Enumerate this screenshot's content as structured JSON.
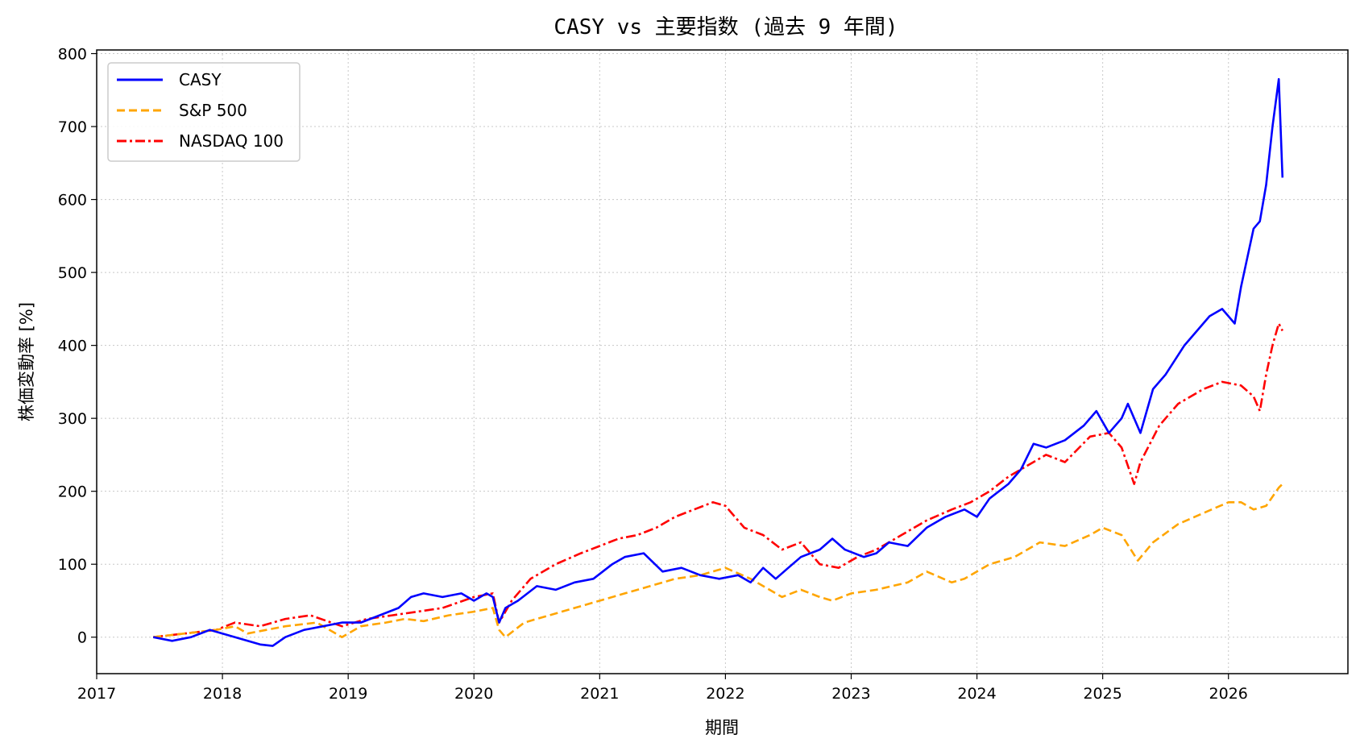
{
  "chart_data": {
    "type": "line",
    "title": "CASY vs 主要指数 (過去 9 年間)",
    "xlabel": "期間",
    "ylabel": "株価変動率 [%]",
    "xlim": [
      2017.0,
      2026.95
    ],
    "ylim": [
      -50,
      805
    ],
    "xticks": [
      2017,
      2018,
      2019,
      2020,
      2021,
      2022,
      2023,
      2024,
      2025,
      2026
    ],
    "yticks": [
      0,
      100,
      200,
      300,
      400,
      500,
      600,
      700,
      800
    ],
    "grid": true,
    "legend_position": "top-left",
    "series": [
      {
        "name": "CASY",
        "color": "#0000ff",
        "style": "solid",
        "x": [
          2017.45,
          2017.6,
          2017.75,
          2017.9,
          2018.0,
          2018.1,
          2018.2,
          2018.3,
          2018.4,
          2018.5,
          2018.65,
          2018.8,
          2018.95,
          2019.1,
          2019.25,
          2019.4,
          2019.5,
          2019.6,
          2019.75,
          2019.9,
          2020.0,
          2020.1,
          2020.15,
          2020.2,
          2020.25,
          2020.35,
          2020.5,
          2020.65,
          2020.8,
          2020.95,
          2021.1,
          2021.2,
          2021.35,
          2021.5,
          2021.65,
          2021.8,
          2021.95,
          2022.1,
          2022.2,
          2022.3,
          2022.4,
          2022.5,
          2022.6,
          2022.75,
          2022.85,
          2022.95,
          2023.1,
          2023.2,
          2023.3,
          2023.45,
          2023.6,
          2023.75,
          2023.9,
          2024.0,
          2024.1,
          2024.25,
          2024.35,
          2024.45,
          2024.55,
          2024.7,
          2024.85,
          2024.95,
          2025.05,
          2025.15,
          2025.2,
          2025.3,
          2025.4,
          2025.5,
          2025.65,
          2025.75,
          2025.85,
          2025.95,
          2026.05,
          2026.1,
          2026.15,
          2026.2,
          2026.25,
          2026.3,
          2026.35,
          2026.4,
          2026.43
        ],
        "y": [
          0,
          -5,
          0,
          10,
          5,
          0,
          -5,
          -10,
          -12,
          0,
          10,
          15,
          20,
          20,
          30,
          40,
          55,
          60,
          55,
          60,
          50,
          60,
          55,
          20,
          40,
          50,
          70,
          65,
          75,
          80,
          100,
          110,
          115,
          90,
          95,
          85,
          80,
          85,
          75,
          95,
          80,
          95,
          110,
          120,
          135,
          120,
          110,
          115,
          130,
          125,
          150,
          165,
          175,
          165,
          190,
          210,
          230,
          265,
          260,
          270,
          290,
          310,
          280,
          300,
          320,
          280,
          340,
          360,
          400,
          420,
          440,
          450,
          430,
          480,
          520,
          560,
          570,
          620,
          700,
          765,
          630
        ]
      },
      {
        "name": "S&P 500",
        "color": "#ffa500",
        "style": "dashed",
        "x": [
          2017.45,
          2017.7,
          2017.95,
          2018.1,
          2018.2,
          2018.5,
          2018.75,
          2018.95,
          2019.1,
          2019.3,
          2019.45,
          2019.6,
          2019.8,
          2020.0,
          2020.15,
          2020.2,
          2020.25,
          2020.4,
          2020.6,
          2020.8,
          2021.0,
          2021.2,
          2021.4,
          2021.6,
          2021.8,
          2022.0,
          2022.2,
          2022.45,
          2022.6,
          2022.75,
          2022.85,
          2023.0,
          2023.2,
          2023.45,
          2023.6,
          2023.8,
          2023.9,
          2024.1,
          2024.3,
          2024.5,
          2024.7,
          2024.9,
          2025.0,
          2025.15,
          2025.28,
          2025.4,
          2025.6,
          2025.8,
          2026.0,
          2026.1,
          2026.2,
          2026.3,
          2026.4,
          2026.43
        ],
        "y": [
          0,
          5,
          10,
          15,
          5,
          15,
          20,
          0,
          15,
          20,
          25,
          22,
          30,
          35,
          40,
          10,
          0,
          20,
          30,
          40,
          50,
          60,
          70,
          80,
          85,
          95,
          80,
          55,
          65,
          55,
          50,
          60,
          65,
          75,
          90,
          75,
          80,
          100,
          110,
          130,
          125,
          140,
          150,
          140,
          105,
          130,
          155,
          170,
          185,
          185,
          175,
          180,
          205,
          210
        ]
      },
      {
        "name": "NASDAQ 100",
        "color": "#ff0000",
        "style": "dashdot",
        "x": [
          2017.45,
          2017.7,
          2017.95,
          2018.1,
          2018.3,
          2018.5,
          2018.7,
          2018.95,
          2019.15,
          2019.35,
          2019.55,
          2019.75,
          2020.0,
          2020.15,
          2020.2,
          2020.3,
          2020.45,
          2020.65,
          2020.85,
          2021.0,
          2021.15,
          2021.3,
          2021.45,
          2021.6,
          2021.75,
          2021.9,
          2022.0,
          2022.15,
          2022.3,
          2022.45,
          2022.6,
          2022.75,
          2022.9,
          2023.05,
          2023.2,
          2023.4,
          2023.6,
          2023.8,
          2023.95,
          2024.1,
          2024.25,
          2024.35,
          2024.55,
          2024.7,
          2024.9,
          2025.05,
          2025.15,
          2025.25,
          2025.3,
          2025.45,
          2025.6,
          2025.8,
          2025.95,
          2026.1,
          2026.2,
          2026.25,
          2026.3,
          2026.35,
          2026.4,
          2026.43
        ],
        "y": [
          0,
          5,
          10,
          20,
          15,
          25,
          30,
          15,
          25,
          30,
          35,
          40,
          55,
          60,
          20,
          50,
          80,
          100,
          115,
          125,
          135,
          140,
          150,
          165,
          175,
          185,
          180,
          150,
          140,
          120,
          130,
          100,
          95,
          110,
          120,
          140,
          160,
          175,
          185,
          200,
          220,
          230,
          250,
          240,
          275,
          280,
          260,
          210,
          240,
          290,
          320,
          340,
          350,
          345,
          330,
          310,
          360,
          400,
          430,
          420
        ]
      }
    ]
  }
}
